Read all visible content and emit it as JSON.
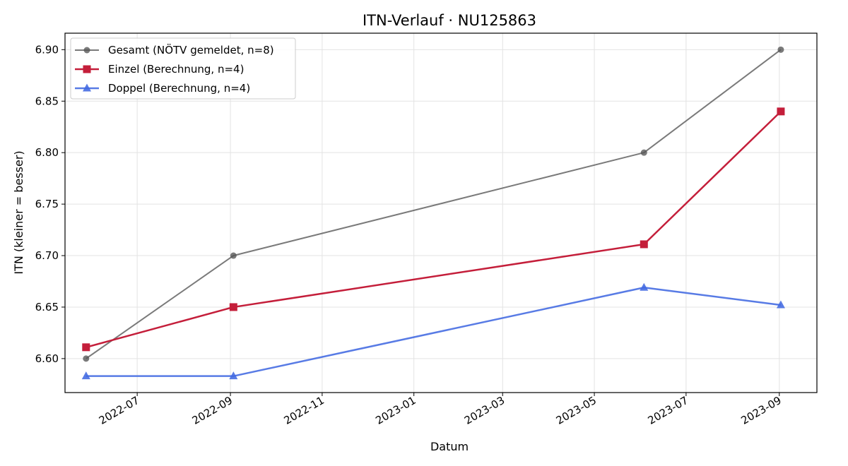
{
  "chart_data": {
    "type": "line",
    "title": "ITN-Verlauf · NU125863",
    "xlabel": "Datum",
    "ylabel": "ITN  (kleiner = besser)",
    "xlim": [
      "2022-05-14",
      "2023-09-26"
    ],
    "ylim": [
      6.567,
      6.916
    ],
    "x_ticks": [
      "2022-07",
      "2022-09",
      "2022-11",
      "2023-01",
      "2023-03",
      "2023-05",
      "2023-07",
      "2023-09"
    ],
    "y_ticks": [
      "6.60",
      "6.65",
      "6.70",
      "6.75",
      "6.80",
      "6.85",
      "6.90"
    ],
    "grid": true,
    "legend_position": "top-left",
    "series": [
      {
        "name": "Gesamt (NÖTV gemeldet, n=8)",
        "color": "#555555",
        "marker": "circle",
        "points": [
          {
            "x": "2022-05-28",
            "y": 6.6
          },
          {
            "x": "2022-09-03",
            "y": 6.7
          },
          {
            "x": "2023-06-03",
            "y": 6.8
          },
          {
            "x": "2023-09-02",
            "y": 6.9
          }
        ]
      },
      {
        "name": "Einzel (Berechnung, n=4)",
        "color": "#c41e3a",
        "marker": "square",
        "points": [
          {
            "x": "2022-05-28",
            "y": 6.611
          },
          {
            "x": "2022-09-03",
            "y": 6.65
          },
          {
            "x": "2023-06-03",
            "y": 6.711
          },
          {
            "x": "2023-09-02",
            "y": 6.84
          }
        ]
      },
      {
        "name": "Doppel (Berechnung, n=4)",
        "color": "#4169e1",
        "marker": "triangle",
        "points": [
          {
            "x": "2022-05-28",
            "y": 6.583
          },
          {
            "x": "2022-09-03",
            "y": 6.583
          },
          {
            "x": "2023-06-03",
            "y": 6.669
          },
          {
            "x": "2023-09-02",
            "y": 6.652
          }
        ]
      }
    ]
  }
}
